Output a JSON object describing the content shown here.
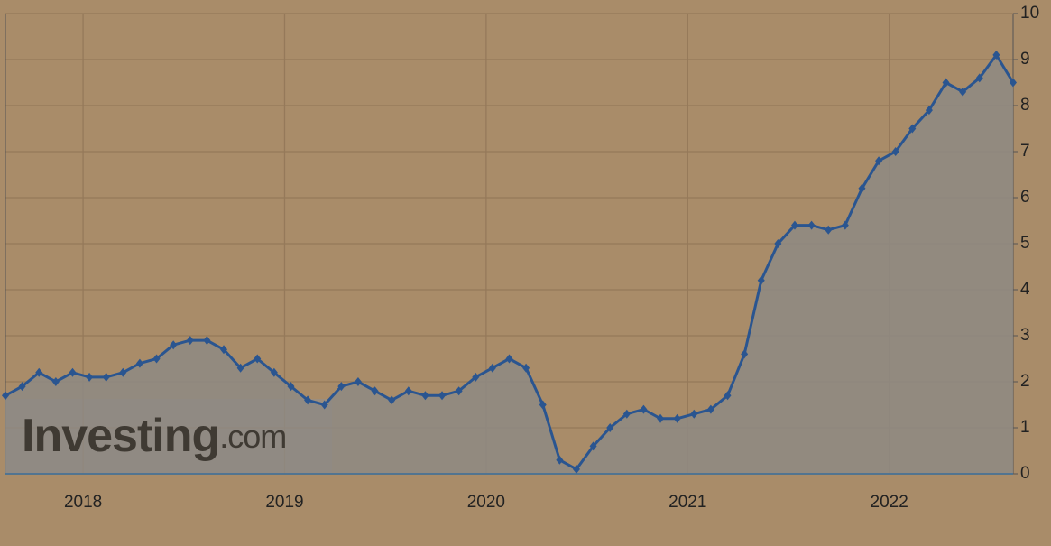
{
  "chart_data": {
    "type": "line",
    "categories": [
      null,
      null,
      null,
      null,
      null,
      "2018",
      null,
      null,
      null,
      null,
      null,
      null,
      null,
      null,
      null,
      null,
      null,
      "2019",
      null,
      null,
      null,
      null,
      null,
      null,
      null,
      null,
      null,
      null,
      null,
      "2020",
      null,
      null,
      null,
      null,
      null,
      null,
      null,
      null,
      null,
      null,
      null,
      "2021",
      null,
      null,
      null,
      null,
      null,
      null,
      null,
      null,
      null,
      null,
      null,
      "2022",
      null,
      null,
      null,
      null,
      null,
      null,
      null
    ],
    "series": [
      {
        "color": "#2a5590",
        "values": [
          1.7,
          1.9,
          2.2,
          2.0,
          2.2,
          2.1,
          2.1,
          2.2,
          2.4,
          2.5,
          2.8,
          2.9,
          2.9,
          2.7,
          2.3,
          2.5,
          2.2,
          1.9,
          1.6,
          1.5,
          1.9,
          2.0,
          1.8,
          1.6,
          1.8,
          1.7,
          1.7,
          1.8,
          2.1,
          2.3,
          2.5,
          2.3,
          1.5,
          0.3,
          0.1,
          0.6,
          1.0,
          1.3,
          1.4,
          1.2,
          1.2,
          1.3,
          1.4,
          1.7,
          2.6,
          4.2,
          5.0,
          5.4,
          5.4,
          5.3,
          5.4,
          6.2,
          6.8,
          7.0,
          7.5,
          7.9,
          8.5,
          8.3,
          8.6,
          9.1,
          8.5
        ]
      }
    ],
    "ylim": [
      0,
      10
    ],
    "yticks": [
      0,
      1,
      2,
      3,
      4,
      5,
      6,
      7,
      8,
      9,
      10
    ],
    "grid": true,
    "area": true,
    "watermark": {
      "brand": "Investing",
      "suffix": ".com"
    }
  }
}
